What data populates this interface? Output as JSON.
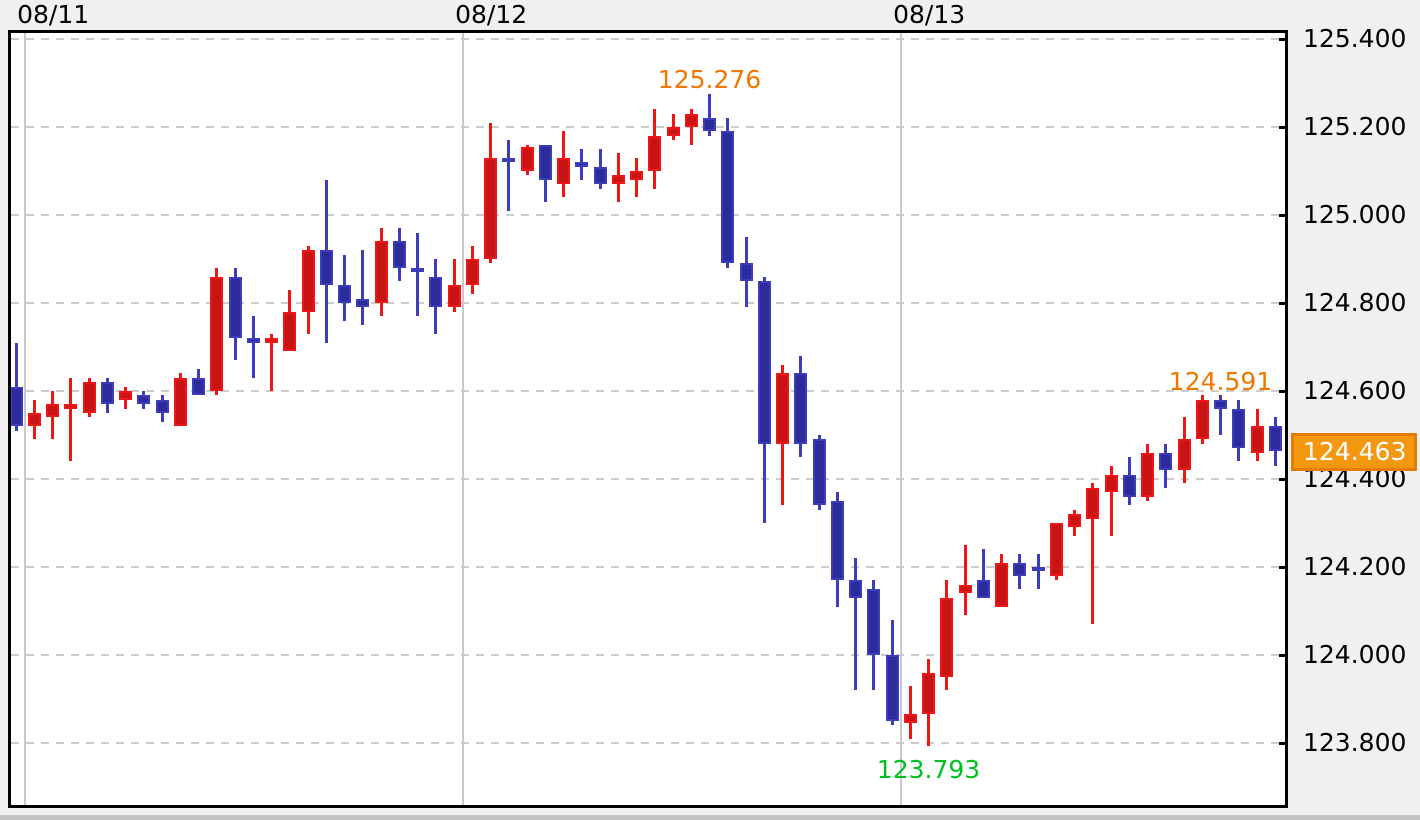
{
  "chart_data": {
    "type": "candlestick",
    "title": "",
    "grid": "dashed-horizontal",
    "legend_position": "none",
    "x_axis": {
      "day_labels": [
        {
          "text": "08/11",
          "boundary_index": 1
        },
        {
          "text": "08/12",
          "boundary_index": 25
        },
        {
          "text": "08/13",
          "boundary_index": 49
        }
      ]
    },
    "y_axis": {
      "tick_labels": [
        "125.400",
        "125.200",
        "125.000",
        "124.800",
        "124.600",
        "124.400",
        "124.200",
        "124.000",
        "123.800"
      ],
      "tick_values": [
        125.4,
        125.2,
        125.0,
        124.8,
        124.6,
        124.4,
        124.2,
        124.0,
        123.8
      ],
      "top_value": 125.4,
      "bottom_value": 123.8
    },
    "candles": [
      [
        124.61,
        124.71,
        124.51,
        124.52
      ],
      [
        124.52,
        124.58,
        124.49,
        124.55
      ],
      [
        124.54,
        124.6,
        124.49,
        124.57
      ],
      [
        124.56,
        124.63,
        124.44,
        124.57
      ],
      [
        124.55,
        124.63,
        124.54,
        124.62
      ],
      [
        124.62,
        124.63,
        124.55,
        124.57
      ],
      [
        124.58,
        124.61,
        124.56,
        124.6
      ],
      [
        124.59,
        124.6,
        124.56,
        124.57
      ],
      [
        124.58,
        124.59,
        124.53,
        124.55
      ],
      [
        124.52,
        124.64,
        124.52,
        124.63
      ],
      [
        124.63,
        124.65,
        124.59,
        124.59
      ],
      [
        124.6,
        124.88,
        124.59,
        124.86
      ],
      [
        124.86,
        124.88,
        124.67,
        124.72
      ],
      [
        124.72,
        124.77,
        124.63,
        124.71
      ],
      [
        124.71,
        124.73,
        124.6,
        124.72
      ],
      [
        124.69,
        124.83,
        124.69,
        124.78
      ],
      [
        124.78,
        124.93,
        124.73,
        124.92
      ],
      [
        124.92,
        125.08,
        124.71,
        124.84
      ],
      [
        124.84,
        124.91,
        124.76,
        124.8
      ],
      [
        124.81,
        124.92,
        124.75,
        124.79
      ],
      [
        124.8,
        124.97,
        124.77,
        124.94
      ],
      [
        124.94,
        124.97,
        124.85,
        124.88
      ],
      [
        124.88,
        124.96,
        124.77,
        124.87
      ],
      [
        124.86,
        124.9,
        124.73,
        124.79
      ],
      [
        124.79,
        124.9,
        124.78,
        124.84
      ],
      [
        124.84,
        124.93,
        124.82,
        124.9
      ],
      [
        124.9,
        125.21,
        124.89,
        125.13
      ],
      [
        125.13,
        125.17,
        125.01,
        125.12
      ],
      [
        125.1,
        125.16,
        125.09,
        125.155
      ],
      [
        125.16,
        125.16,
        125.03,
        125.08
      ],
      [
        125.07,
        125.19,
        125.04,
        125.13
      ],
      [
        125.12,
        125.15,
        125.08,
        125.11
      ],
      [
        125.11,
        125.15,
        125.06,
        125.07
      ],
      [
        125.07,
        125.14,
        125.03,
        125.09
      ],
      [
        125.08,
        125.13,
        125.04,
        125.1
      ],
      [
        125.1,
        125.24,
        125.06,
        125.18
      ],
      [
        125.18,
        125.23,
        125.17,
        125.2
      ],
      [
        125.2,
        125.24,
        125.16,
        125.23
      ],
      [
        125.22,
        125.276,
        125.18,
        125.19
      ],
      [
        125.19,
        125.22,
        124.88,
        124.89
      ],
      [
        124.89,
        124.95,
        124.79,
        124.85
      ],
      [
        124.85,
        124.86,
        124.3,
        124.48
      ],
      [
        124.48,
        124.66,
        124.34,
        124.64
      ],
      [
        124.64,
        124.68,
        124.45,
        124.48
      ],
      [
        124.49,
        124.5,
        124.33,
        124.34
      ],
      [
        124.35,
        124.37,
        124.11,
        124.17
      ],
      [
        124.17,
        124.22,
        123.92,
        124.13
      ],
      [
        124.15,
        124.17,
        123.92,
        124.0
      ],
      [
        124.0,
        124.08,
        123.84,
        123.85
      ],
      [
        123.845,
        123.93,
        123.81,
        123.865
      ],
      [
        123.865,
        123.99,
        123.793,
        123.958
      ],
      [
        123.95,
        124.17,
        123.92,
        124.13
      ],
      [
        124.14,
        124.25,
        124.09,
        124.16
      ],
      [
        124.17,
        124.24,
        124.13,
        124.13
      ],
      [
        124.11,
        124.23,
        124.11,
        124.21
      ],
      [
        124.21,
        124.23,
        124.15,
        124.18
      ],
      [
        124.2,
        124.23,
        124.15,
        124.19
      ],
      [
        124.18,
        124.3,
        124.17,
        124.3
      ],
      [
        124.29,
        124.33,
        124.27,
        124.32
      ],
      [
        124.31,
        124.39,
        124.07,
        124.38
      ],
      [
        124.37,
        124.43,
        124.27,
        124.41
      ],
      [
        124.41,
        124.45,
        124.34,
        124.36
      ],
      [
        124.36,
        124.48,
        124.35,
        124.46
      ],
      [
        124.46,
        124.48,
        124.38,
        124.42
      ],
      [
        124.42,
        124.54,
        124.39,
        124.49
      ],
      [
        124.49,
        124.59,
        124.48,
        124.58
      ],
      [
        124.58,
        124.591,
        124.5,
        124.56
      ],
      [
        124.56,
        124.58,
        124.44,
        124.47
      ],
      [
        124.46,
        124.56,
        124.44,
        124.52
      ],
      [
        124.52,
        124.54,
        124.43,
        124.463
      ]
    ],
    "annotations": {
      "period_high": {
        "text": "125.276",
        "value": 125.276,
        "candle_index": 38
      },
      "period_low": {
        "text": "123.793",
        "value": 123.793,
        "candle_index": 50
      },
      "recent_high": {
        "text": "124.591",
        "value": 124.591,
        "candle_index": 66
      },
      "current_price": {
        "text": "124.463",
        "value": 124.463
      }
    },
    "colors": {
      "up_fill": "#c81414",
      "up_border": "#f01414",
      "down_fill": "#2b2b9b",
      "down_border": "#3d3dbb",
      "grid": "#cccccc",
      "day_line": "#c9c9c9",
      "frame": "#000000",
      "plot_bg": "#ffffff",
      "page_bg": "#f0f0f0",
      "high_label": "#ee7700",
      "low_label": "#00c020",
      "badge_bg": "#f5980f",
      "badge_border": "#e27d00",
      "badge_text": "#ffffff"
    }
  }
}
